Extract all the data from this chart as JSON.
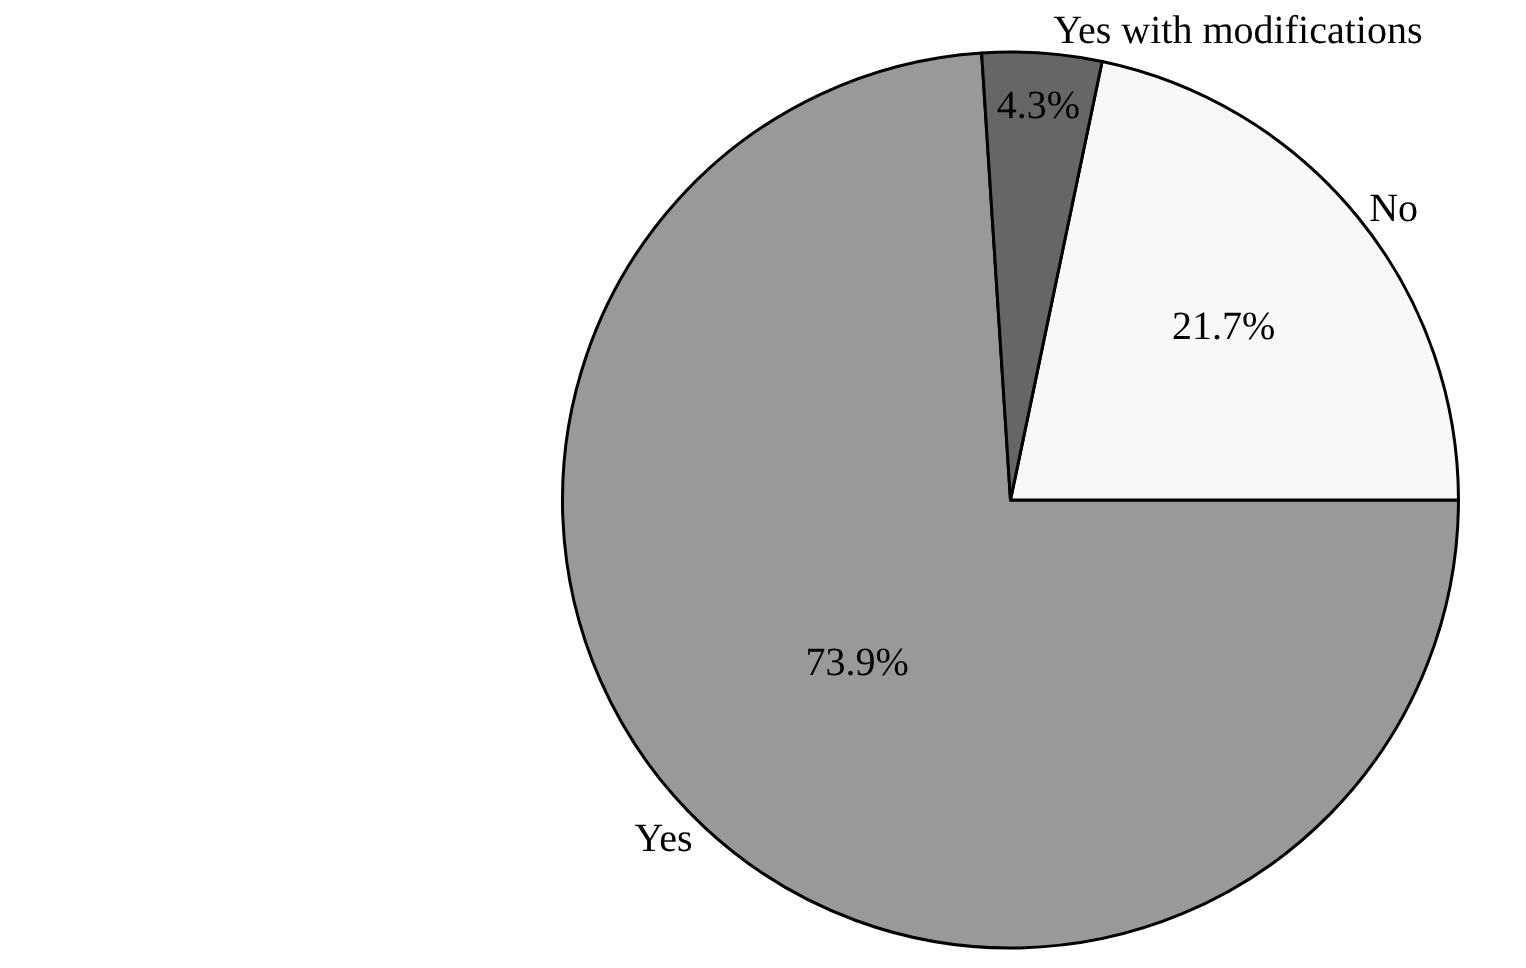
{
  "chart_data": {
    "type": "pie",
    "categories": [
      "Yes",
      "No",
      "Yes with modifications"
    ],
    "values": [
      73.9,
      21.7,
      4.3
    ],
    "value_labels": [
      "73.9%",
      "21.7%",
      "4.3%"
    ],
    "colors": [
      "#999999",
      "#f8f8f8",
      "#666666"
    ],
    "legend": false
  }
}
